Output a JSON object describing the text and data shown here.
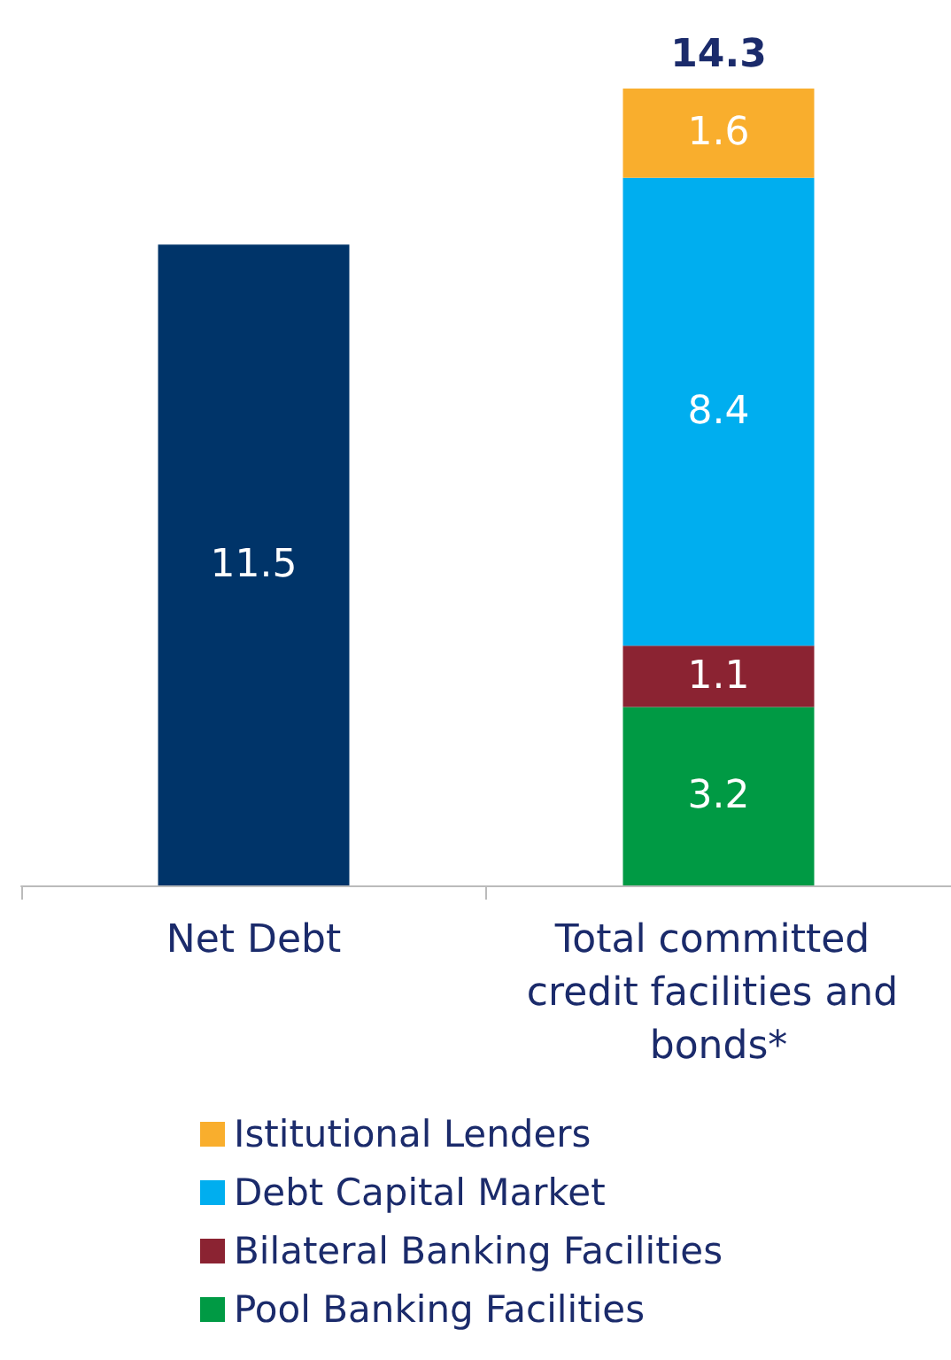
{
  "chart_data": {
    "type": "bar",
    "stacked": true,
    "categories": [
      "Net Debt",
      "Total committed credit facilities and bonds*"
    ],
    "series": [
      {
        "color": "#003469",
        "values": [
          11.5,
          null
        ]
      },
      {
        "name": "Pool Banking Facilities",
        "color": "#009a44",
        "values": [
          null,
          3.2
        ]
      },
      {
        "name": "Bilateral Banking Facilities",
        "color": "#8b2332",
        "values": [
          null,
          1.1
        ]
      },
      {
        "name": "Debt Capital Market",
        "color": "#00aeef",
        "values": [
          null,
          8.4
        ]
      },
      {
        "name": "Istitutional Lenders",
        "color": "#f9ae2d",
        "values": [
          null,
          1.6
        ]
      }
    ],
    "totals": [
      null,
      "14.3"
    ],
    "data_labels": true,
    "legend": "bottom",
    "grid": false
  }
}
